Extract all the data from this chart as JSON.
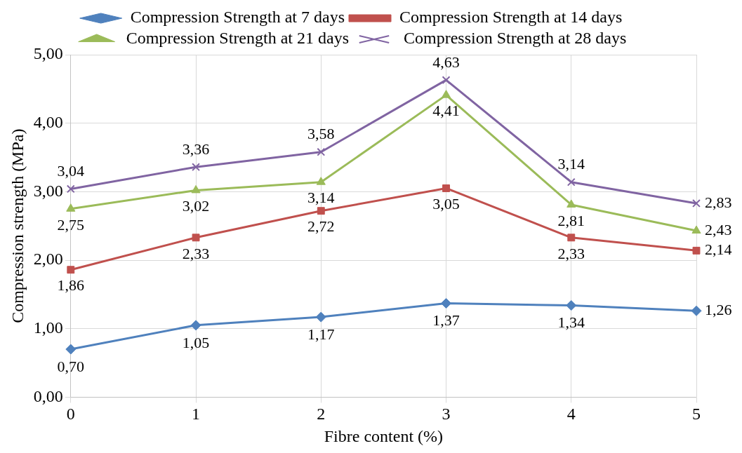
{
  "chart_data": {
    "type": "line",
    "xlabel": "Fibre content (%)",
    "ylabel": "Compression strength (MPa)",
    "categories": [
      "0",
      "1",
      "2",
      "3",
      "4",
      "5"
    ],
    "ylim": [
      0,
      5
    ],
    "yticks": [
      {
        "value": 0,
        "label": "0,00"
      },
      {
        "value": 1,
        "label": "1,00"
      },
      {
        "value": 2,
        "label": "2,00"
      },
      {
        "value": 3,
        "label": "3,00"
      },
      {
        "value": 4,
        "label": "4,00"
      },
      {
        "value": 5,
        "label": "5,00"
      }
    ],
    "grid": true,
    "legend": "top",
    "line_style": "solid",
    "series": [
      {
        "name": "Compression Strength at 7 days",
        "color": "#4f81bd",
        "marker": "diamond",
        "values": [
          0.7,
          1.05,
          1.17,
          1.37,
          1.34,
          1.26
        ],
        "value_labels": [
          "0,70",
          "1,05",
          "1,17",
          "1,37",
          "1,34",
          "1,26"
        ]
      },
      {
        "name": "Compression Strength at 14 days",
        "color": "#c0504d",
        "marker": "square",
        "values": [
          1.86,
          2.33,
          2.72,
          3.05,
          2.33,
          2.14
        ],
        "value_labels": [
          "1,86",
          "2,33",
          "2,72",
          "3,05",
          "2,33",
          "2,14"
        ]
      },
      {
        "name": "Compression Strength at 21 days",
        "color": "#9bbb59",
        "marker": "triangle",
        "values": [
          2.75,
          3.02,
          3.14,
          4.41,
          2.81,
          2.43
        ],
        "value_labels": [
          "2,75",
          "3,02",
          "3,14",
          "4,41",
          "2,81",
          "2,43"
        ]
      },
      {
        "name": "Compression Strength at 28 days",
        "color": "#8064a2",
        "marker": "cross",
        "values": [
          3.04,
          3.36,
          3.58,
          4.63,
          3.14,
          2.83
        ],
        "value_labels": [
          "3,04",
          "3,36",
          "3,58",
          "4,63",
          "3,14",
          "2,83"
        ]
      }
    ]
  }
}
